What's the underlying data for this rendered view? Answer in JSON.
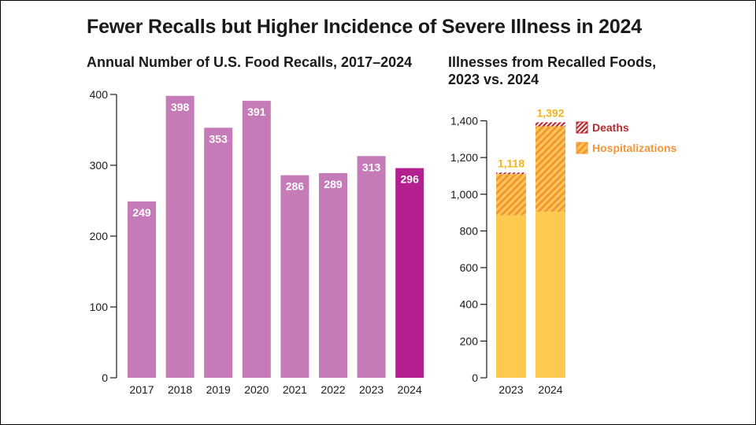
{
  "title": "Fewer Recalls but Higher Incidence of Severe Illness in 2024",
  "chart_data": [
    {
      "type": "bar",
      "title": "Annual Number of U.S. Food Recalls, 2017–2024",
      "categories": [
        "2017",
        "2018",
        "2019",
        "2020",
        "2021",
        "2022",
        "2023",
        "2024"
      ],
      "values": [
        249,
        398,
        353,
        391,
        286,
        289,
        313,
        296
      ],
      "ylim": [
        0,
        400
      ],
      "yticks": [
        0,
        100,
        200,
        300,
        400
      ],
      "value_labels": [
        "249",
        "398",
        "353",
        "391",
        "286",
        "289",
        "313",
        "296"
      ],
      "tick_labels": [
        "0",
        "100",
        "200",
        "300",
        "400"
      ],
      "colors": {
        "bar": "#c57bb8",
        "highlight": "#b4208f",
        "label": "#ffffff"
      },
      "highlight_category": "2024",
      "grid": false
    },
    {
      "type": "bar",
      "stacked": true,
      "title": "Illnesses from Recalled Foods, 2023 vs. 2024",
      "categories": [
        "2023",
        "2024"
      ],
      "totals": [
        1118,
        1392
      ],
      "total_labels": [
        "1,118",
        "1,392"
      ],
      "series": [
        {
          "name": "",
          "values": [
            885,
            905
          ],
          "color": "#fdc94f"
        },
        {
          "name": "Hospitalizations",
          "values": [
            225,
            465
          ],
          "color": "#f3953b"
        },
        {
          "name": "Deaths",
          "values": [
            8,
            22
          ],
          "color": "#b72a2f"
        }
      ],
      "ylim": [
        0,
        1400
      ],
      "yticks": [
        0,
        200,
        400,
        600,
        800,
        1000,
        1200,
        1400
      ],
      "tick_labels": [
        "0",
        "200",
        "400",
        "600",
        "800",
        "1,000",
        "1,200",
        "1,400"
      ],
      "legend": [
        "Deaths",
        "Hospitalizations"
      ],
      "legend_placement": "top-right",
      "colors": {
        "total_label": "#f2b31c",
        "axis": "#1a1a1a"
      },
      "grid": false
    }
  ]
}
